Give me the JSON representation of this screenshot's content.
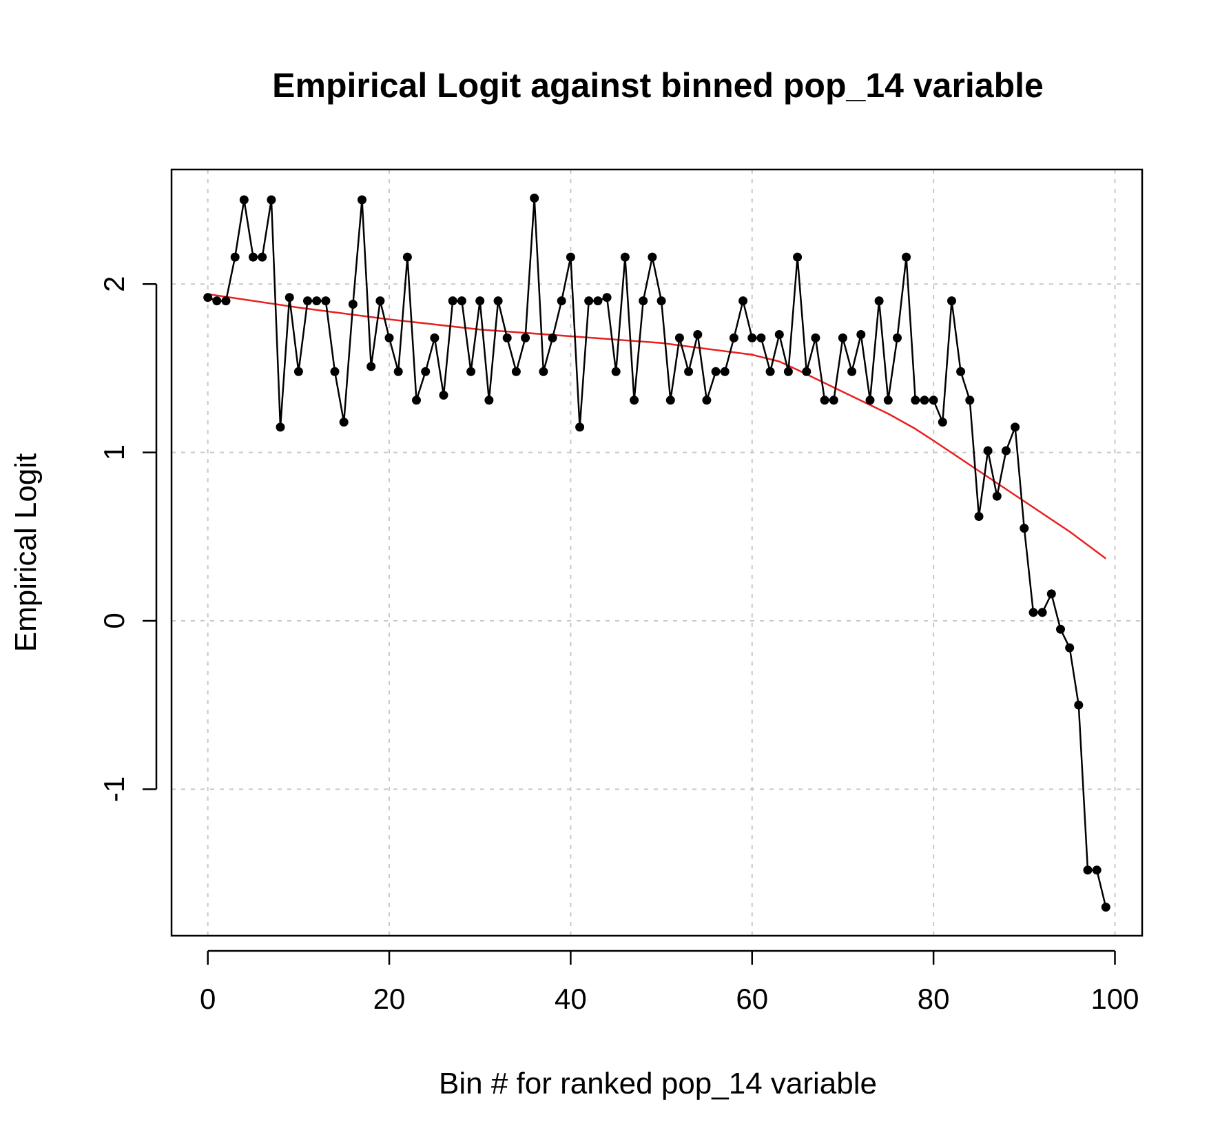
{
  "chart_data": {
    "type": "line",
    "title": "Empirical Logit against binned pop_14 variable",
    "xlabel": "Bin # for ranked pop_14 variable",
    "ylabel": "Empirical Logit",
    "xlim": [
      -4,
      103
    ],
    "ylim": [
      -1.87,
      2.68
    ],
    "xticks": [
      0,
      20,
      40,
      60,
      80,
      100
    ],
    "yticks": [
      -1,
      0,
      1,
      2
    ],
    "grid": true,
    "series": [
      {
        "style": "line-with-points",
        "color": "#000000",
        "x": [
          0,
          1,
          2,
          3,
          4,
          5,
          6,
          7,
          8,
          9,
          10,
          11,
          12,
          13,
          14,
          15,
          16,
          17,
          18,
          19,
          20,
          21,
          22,
          23,
          24,
          25,
          26,
          27,
          28,
          29,
          30,
          31,
          32,
          33,
          34,
          35,
          36,
          37,
          38,
          39,
          40,
          41,
          42,
          43,
          44,
          45,
          46,
          47,
          48,
          49,
          50,
          51,
          52,
          53,
          54,
          55,
          56,
          57,
          58,
          59,
          60,
          61,
          62,
          63,
          64,
          65,
          66,
          67,
          68,
          69,
          70,
          71,
          72,
          73,
          74,
          75,
          76,
          77,
          78,
          79,
          80,
          81,
          82,
          83,
          84,
          85,
          86,
          87,
          88,
          89,
          90,
          91,
          92,
          93,
          94,
          95,
          96,
          97,
          98,
          99
        ],
        "values": [
          1.92,
          1.9,
          1.9,
          2.16,
          2.5,
          2.16,
          2.16,
          2.5,
          1.15,
          1.92,
          1.48,
          1.9,
          1.9,
          1.9,
          1.48,
          1.18,
          1.88,
          2.5,
          1.51,
          1.9,
          1.68,
          1.48,
          2.16,
          1.31,
          1.48,
          1.68,
          1.34,
          1.9,
          1.9,
          1.48,
          1.9,
          1.31,
          1.9,
          1.68,
          1.48,
          1.68,
          2.51,
          1.48,
          1.68,
          1.9,
          2.16,
          1.15,
          1.9,
          1.9,
          1.92,
          1.48,
          2.16,
          1.31,
          1.9,
          2.16,
          1.9,
          1.31,
          1.68,
          1.48,
          1.7,
          1.31,
          1.48,
          1.48,
          1.68,
          1.9,
          1.68,
          1.68,
          1.48,
          1.7,
          1.48,
          2.16,
          1.48,
          1.68,
          1.31,
          1.31,
          1.68,
          1.48,
          1.7,
          1.31,
          1.9,
          1.31,
          1.68,
          2.16,
          1.31,
          1.31,
          1.31,
          1.18,
          1.9,
          1.48,
          1.31,
          0.62,
          1.01,
          0.74,
          1.01,
          1.15,
          0.55,
          0.05,
          0.05,
          0.16,
          -0.05,
          -0.16,
          -0.5,
          -1.48,
          -1.48,
          -1.7
        ]
      },
      {
        "style": "smooth-line",
        "color": "#e8201e",
        "x": [
          0,
          10,
          20,
          30,
          40,
          50,
          60,
          63,
          65,
          70,
          75,
          78,
          80,
          85,
          90,
          95,
          99
        ],
        "values": [
          1.94,
          1.86,
          1.79,
          1.73,
          1.69,
          1.65,
          1.58,
          1.54,
          1.49,
          1.36,
          1.23,
          1.14,
          1.07,
          0.89,
          0.71,
          0.53,
          0.37
        ]
      }
    ]
  }
}
